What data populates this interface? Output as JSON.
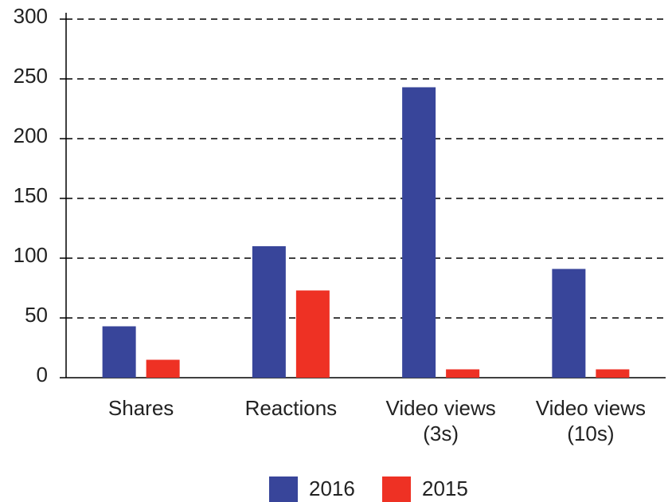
{
  "chart_data": {
    "type": "bar",
    "categories": [
      "Shares",
      "Reactions",
      "Video views (3s)",
      "Video views (10s)"
    ],
    "series": [
      {
        "name": "2016",
        "color": "#38459a",
        "values": [
          43,
          110,
          243,
          91
        ]
      },
      {
        "name": "2015",
        "color": "#ee3124",
        "values": [
          15,
          73,
          7,
          7
        ]
      }
    ],
    "ylim": [
      0,
      300
    ],
    "yticks": [
      0,
      50,
      100,
      150,
      200,
      250,
      300
    ],
    "grid": true,
    "legend": "bottom"
  }
}
